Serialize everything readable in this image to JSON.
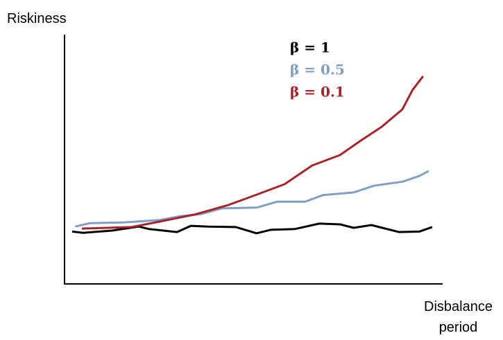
{
  "chart_data": {
    "type": "line",
    "x_label": "Disbalance period",
    "y_label": "Riskiness",
    "xlim": [
      0,
      100
    ],
    "ylim": [
      0,
      100
    ],
    "series": [
      {
        "name": "β = 1",
        "color": "#000000",
        "x": [
          2,
          5,
          12.6,
          19.7,
          22.4,
          29.8,
          33.5,
          38,
          45.4,
          50.9,
          54.6,
          61,
          67.5,
          73,
          76.6,
          81.3,
          88.6,
          94,
          97.4
        ],
        "values": [
          21,
          20.5,
          21.4,
          23,
          22,
          20.8,
          23.3,
          23,
          22.8,
          20.3,
          21.7,
          22,
          24.2,
          23.9,
          22.5,
          23.6,
          20.8,
          21,
          22.8
        ]
      },
      {
        "name": "β = 0.5",
        "color": "#7f9fc4",
        "x": [
          2.8,
          6.8,
          16,
          25.2,
          30.7,
          36.2,
          41.7,
          50.9,
          56.4,
          63.8,
          68.4,
          76.6,
          82,
          89.5,
          94,
          96.5
        ],
        "values": [
          23,
          24.4,
          24.7,
          25.6,
          27.2,
          28,
          30.3,
          30.6,
          33,
          33,
          35.6,
          36.7,
          39.4,
          41,
          43.3,
          45.3
        ]
      },
      {
        "name": "β = 0.1",
        "color": "#a8232a",
        "x": [
          4.6,
          17.8,
          25.2,
          34.4,
          43.5,
          50.9,
          58.3,
          65.6,
          73,
          78.5,
          84,
          89.5,
          92.2,
          95
        ],
        "values": [
          22.2,
          22.8,
          25,
          27.8,
          31.7,
          35.8,
          40,
          47.5,
          51.7,
          57.5,
          63,
          70,
          77.8,
          83.3
        ]
      }
    ]
  }
}
